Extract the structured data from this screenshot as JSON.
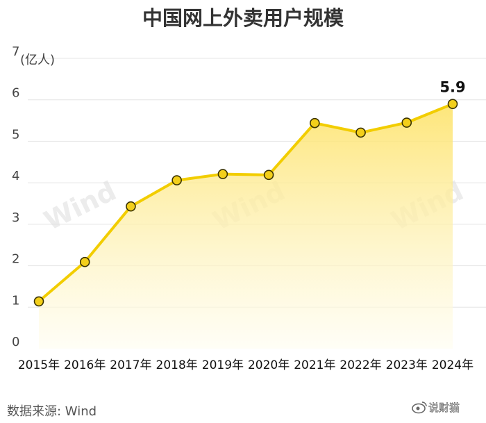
{
  "chart_data": {
    "type": "area",
    "title": "中国网上外卖用户规模",
    "ylabel": "(亿人)",
    "categories": [
      "2015年",
      "2016年",
      "2017年",
      "2018年",
      "2019年",
      "2020年",
      "2021年",
      "2022年",
      "2023年",
      "2024年"
    ],
    "series": [
      {
        "values": [
          1.14,
          2.09,
          3.43,
          4.06,
          4.21,
          4.19,
          5.44,
          5.21,
          5.45,
          5.9
        ]
      }
    ],
    "ylim": [
      0,
      7
    ],
    "yticks": [
      0,
      1,
      2,
      3,
      4,
      5,
      6,
      7
    ],
    "grid": true,
    "annotations": [
      {
        "index": 9,
        "text": "5.9"
      }
    ],
    "source": "数据来源: Wind",
    "watermark": "Wind",
    "logo_text": "说财猫",
    "colors": {
      "line": "#f2cd00",
      "fill_top": "#fde36b",
      "fill_bottom": "#fffdf0",
      "marker": "#f3cf1a",
      "marker_stroke": "#3a3200",
      "grid": "#e4e4e4"
    }
  }
}
